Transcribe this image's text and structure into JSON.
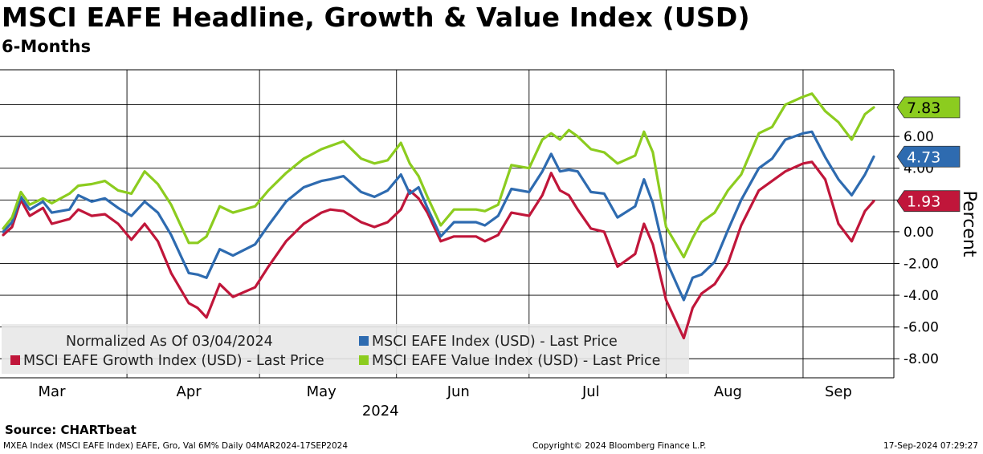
{
  "title": "MSCI EAFE Headline, Growth & Value Index (USD)",
  "subtitle": "6-Months",
  "source": "Source:  CHARTbeat",
  "footer": {
    "left": "MXEA Index (MSCI EAFE Index) EAFE, Gro, Val 6M%  Daily 04MAR2024-17SEP2024",
    "center": "Copyright© 2024 Bloomberg Finance L.P.",
    "right": "17-Sep-2024 07:29:27"
  },
  "colors": {
    "headline": "#2e6bb0",
    "growth": "#c0163a",
    "value": "#8ccc1f",
    "grid": "#000000"
  },
  "chart_data": {
    "type": "line",
    "ylabel": "Percent",
    "ylim": [
      -9.2,
      10.2
    ],
    "yticks": [
      -8,
      -6,
      -4,
      -2,
      0,
      2,
      4,
      6,
      8
    ],
    "ytick_labels": [
      "-8.00",
      "-6.00",
      "-4.00",
      "-2.00",
      "0.00",
      "2.00",
      "4.00",
      "6.00",
      "8.00"
    ],
    "xlim": [
      "2024-03-04",
      "2024-09-17"
    ],
    "month_labels": [
      "Mar",
      "Apr",
      "May",
      "Jun",
      "Jul",
      "Aug",
      "Sep"
    ],
    "month_label_dates": [
      "2024-03-15",
      "2024-04-15",
      "2024-05-15",
      "2024-06-15",
      "2024-07-15",
      "2024-08-15",
      "2024-09-09"
    ],
    "month_starts": [
      "2024-03-01",
      "2024-04-01",
      "2024-05-01",
      "2024-06-01",
      "2024-07-01",
      "2024-08-01",
      "2024-09-01"
    ],
    "year_label": "2024",
    "year_label_date": "2024-06-01",
    "legend": {
      "normalized": "Normalized As Of 03/04/2024",
      "entries": [
        {
          "series": 0,
          "label": "MSCI EAFE Index (USD) - Last Price"
        },
        {
          "series": 1,
          "label": "MSCI EAFE Growth Index (USD) - Last Price"
        },
        {
          "series": 2,
          "label": "MSCI EAFE Value Index (USD) - Last Price"
        }
      ]
    },
    "series": [
      {
        "name": "MSCI EAFE Index (USD) - Last Price",
        "color": "#2e6bb0",
        "last_value_label": "4.73",
        "points": [
          [
            "2024-03-04",
            0.0
          ],
          [
            "2024-03-06",
            0.6
          ],
          [
            "2024-03-08",
            2.2
          ],
          [
            "2024-03-10",
            1.4
          ],
          [
            "2024-03-13",
            1.9
          ],
          [
            "2024-03-15",
            1.2
          ],
          [
            "2024-03-19",
            1.4
          ],
          [
            "2024-03-21",
            2.3
          ],
          [
            "2024-03-24",
            1.9
          ],
          [
            "2024-03-27",
            2.1
          ],
          [
            "2024-03-30",
            1.5
          ],
          [
            "2024-04-02",
            1.0
          ],
          [
            "2024-04-05",
            1.9
          ],
          [
            "2024-04-08",
            1.2
          ],
          [
            "2024-04-11",
            -0.2
          ],
          [
            "2024-04-15",
            -2.6
          ],
          [
            "2024-04-17",
            -2.7
          ],
          [
            "2024-04-19",
            -2.9
          ],
          [
            "2024-04-22",
            -1.1
          ],
          [
            "2024-04-25",
            -1.5
          ],
          [
            "2024-04-30",
            -0.8
          ],
          [
            "2024-05-03",
            0.4
          ],
          [
            "2024-05-07",
            1.9
          ],
          [
            "2024-05-11",
            2.8
          ],
          [
            "2024-05-15",
            3.2
          ],
          [
            "2024-05-17",
            3.3
          ],
          [
            "2024-05-20",
            3.5
          ],
          [
            "2024-05-24",
            2.5
          ],
          [
            "2024-05-27",
            2.2
          ],
          [
            "2024-05-30",
            2.6
          ],
          [
            "2024-06-02",
            3.6
          ],
          [
            "2024-06-04",
            2.4
          ],
          [
            "2024-06-06",
            2.8
          ],
          [
            "2024-06-08",
            1.5
          ],
          [
            "2024-06-11",
            -0.3
          ],
          [
            "2024-06-14",
            0.6
          ],
          [
            "2024-06-19",
            0.6
          ],
          [
            "2024-06-21",
            0.4
          ],
          [
            "2024-06-24",
            1.0
          ],
          [
            "2024-06-27",
            2.7
          ],
          [
            "2024-07-01",
            2.5
          ],
          [
            "2024-07-04",
            3.8
          ],
          [
            "2024-07-06",
            4.9
          ],
          [
            "2024-07-08",
            3.8
          ],
          [
            "2024-07-10",
            3.9
          ],
          [
            "2024-07-12",
            3.8
          ],
          [
            "2024-07-15",
            2.5
          ],
          [
            "2024-07-18",
            2.4
          ],
          [
            "2024-07-21",
            0.9
          ],
          [
            "2024-07-25",
            1.6
          ],
          [
            "2024-07-27",
            3.3
          ],
          [
            "2024-07-29",
            1.8
          ],
          [
            "2024-08-01",
            -1.8
          ],
          [
            "2024-08-05",
            -4.3
          ],
          [
            "2024-08-07",
            -2.9
          ],
          [
            "2024-08-09",
            -2.7
          ],
          [
            "2024-08-12",
            -1.9
          ],
          [
            "2024-08-15",
            0.1
          ],
          [
            "2024-08-18",
            2.0
          ],
          [
            "2024-08-22",
            4.0
          ],
          [
            "2024-08-25",
            4.6
          ],
          [
            "2024-08-28",
            5.8
          ],
          [
            "2024-09-01",
            6.2
          ],
          [
            "2024-09-03",
            6.3
          ],
          [
            "2024-09-06",
            4.7
          ],
          [
            "2024-09-09",
            3.3
          ],
          [
            "2024-09-12",
            2.3
          ],
          [
            "2024-09-15",
            3.6
          ],
          [
            "2024-09-17",
            4.73
          ]
        ]
      },
      {
        "name": "MSCI EAFE Growth Index (USD) - Last Price",
        "color": "#c0163a",
        "last_value_label": "1.93",
        "points": [
          [
            "2024-03-04",
            -0.2
          ],
          [
            "2024-03-06",
            0.3
          ],
          [
            "2024-03-08",
            2.0
          ],
          [
            "2024-03-10",
            1.0
          ],
          [
            "2024-03-13",
            1.5
          ],
          [
            "2024-03-15",
            0.5
          ],
          [
            "2024-03-19",
            0.8
          ],
          [
            "2024-03-21",
            1.4
          ],
          [
            "2024-03-24",
            1.0
          ],
          [
            "2024-03-27",
            1.1
          ],
          [
            "2024-03-30",
            0.5
          ],
          [
            "2024-04-02",
            -0.5
          ],
          [
            "2024-04-05",
            0.5
          ],
          [
            "2024-04-08",
            -0.6
          ],
          [
            "2024-04-11",
            -2.6
          ],
          [
            "2024-04-15",
            -4.5
          ],
          [
            "2024-04-17",
            -4.8
          ],
          [
            "2024-04-19",
            -5.4
          ],
          [
            "2024-04-22",
            -3.3
          ],
          [
            "2024-04-25",
            -4.1
          ],
          [
            "2024-04-30",
            -3.5
          ],
          [
            "2024-05-03",
            -2.2
          ],
          [
            "2024-05-07",
            -0.6
          ],
          [
            "2024-05-11",
            0.5
          ],
          [
            "2024-05-15",
            1.2
          ],
          [
            "2024-05-17",
            1.4
          ],
          [
            "2024-05-20",
            1.3
          ],
          [
            "2024-05-24",
            0.6
          ],
          [
            "2024-05-27",
            0.3
          ],
          [
            "2024-05-30",
            0.6
          ],
          [
            "2024-06-02",
            1.4
          ],
          [
            "2024-06-04",
            2.6
          ],
          [
            "2024-06-06",
            2.1
          ],
          [
            "2024-06-08",
            1.2
          ],
          [
            "2024-06-11",
            -0.6
          ],
          [
            "2024-06-14",
            -0.3
          ],
          [
            "2024-06-19",
            -0.3
          ],
          [
            "2024-06-21",
            -0.6
          ],
          [
            "2024-06-24",
            -0.2
          ],
          [
            "2024-06-27",
            1.2
          ],
          [
            "2024-07-01",
            1.0
          ],
          [
            "2024-07-04",
            2.3
          ],
          [
            "2024-07-06",
            3.7
          ],
          [
            "2024-07-08",
            2.6
          ],
          [
            "2024-07-10",
            2.3
          ],
          [
            "2024-07-12",
            1.4
          ],
          [
            "2024-07-15",
            0.2
          ],
          [
            "2024-07-18",
            0.0
          ],
          [
            "2024-07-21",
            -2.2
          ],
          [
            "2024-07-25",
            -1.4
          ],
          [
            "2024-07-27",
            0.5
          ],
          [
            "2024-07-29",
            -0.8
          ],
          [
            "2024-08-01",
            -4.3
          ],
          [
            "2024-08-05",
            -6.7
          ],
          [
            "2024-08-07",
            -4.8
          ],
          [
            "2024-08-09",
            -3.9
          ],
          [
            "2024-08-12",
            -3.3
          ],
          [
            "2024-08-15",
            -2.0
          ],
          [
            "2024-08-18",
            0.4
          ],
          [
            "2024-08-22",
            2.6
          ],
          [
            "2024-08-25",
            3.2
          ],
          [
            "2024-08-28",
            3.8
          ],
          [
            "2024-09-01",
            4.3
          ],
          [
            "2024-09-03",
            4.4
          ],
          [
            "2024-09-06",
            3.3
          ],
          [
            "2024-09-09",
            0.5
          ],
          [
            "2024-09-12",
            -0.6
          ],
          [
            "2024-09-15",
            1.3
          ],
          [
            "2024-09-17",
            1.93
          ]
        ]
      },
      {
        "name": "MSCI EAFE Value Index (USD) - Last Price",
        "color": "#8ccc1f",
        "last_value_label": "7.83",
        "points": [
          [
            "2024-03-04",
            0.2
          ],
          [
            "2024-03-06",
            0.9
          ],
          [
            "2024-03-08",
            2.5
          ],
          [
            "2024-03-10",
            1.7
          ],
          [
            "2024-03-13",
            2.1
          ],
          [
            "2024-03-15",
            1.8
          ],
          [
            "2024-03-19",
            2.4
          ],
          [
            "2024-03-21",
            2.9
          ],
          [
            "2024-03-24",
            3.0
          ],
          [
            "2024-03-27",
            3.2
          ],
          [
            "2024-03-30",
            2.6
          ],
          [
            "2024-04-02",
            2.4
          ],
          [
            "2024-04-05",
            3.8
          ],
          [
            "2024-04-08",
            3.0
          ],
          [
            "2024-04-11",
            1.7
          ],
          [
            "2024-04-15",
            -0.7
          ],
          [
            "2024-04-17",
            -0.7
          ],
          [
            "2024-04-19",
            -0.3
          ],
          [
            "2024-04-22",
            1.6
          ],
          [
            "2024-04-25",
            1.2
          ],
          [
            "2024-04-30",
            1.6
          ],
          [
            "2024-05-03",
            2.6
          ],
          [
            "2024-05-07",
            3.7
          ],
          [
            "2024-05-11",
            4.6
          ],
          [
            "2024-05-15",
            5.2
          ],
          [
            "2024-05-17",
            5.4
          ],
          [
            "2024-05-20",
            5.7
          ],
          [
            "2024-05-24",
            4.6
          ],
          [
            "2024-05-27",
            4.3
          ],
          [
            "2024-05-30",
            4.5
          ],
          [
            "2024-06-02",
            5.6
          ],
          [
            "2024-06-04",
            4.3
          ],
          [
            "2024-06-06",
            3.5
          ],
          [
            "2024-06-08",
            2.2
          ],
          [
            "2024-06-11",
            0.4
          ],
          [
            "2024-06-14",
            1.4
          ],
          [
            "2024-06-19",
            1.4
          ],
          [
            "2024-06-21",
            1.3
          ],
          [
            "2024-06-24",
            1.7
          ],
          [
            "2024-06-27",
            4.2
          ],
          [
            "2024-07-01",
            4.0
          ],
          [
            "2024-07-04",
            5.8
          ],
          [
            "2024-07-06",
            6.2
          ],
          [
            "2024-07-08",
            5.8
          ],
          [
            "2024-07-10",
            6.4
          ],
          [
            "2024-07-12",
            6.0
          ],
          [
            "2024-07-15",
            5.2
          ],
          [
            "2024-07-18",
            5.0
          ],
          [
            "2024-07-21",
            4.3
          ],
          [
            "2024-07-25",
            4.8
          ],
          [
            "2024-07-27",
            6.3
          ],
          [
            "2024-07-29",
            5.0
          ],
          [
            "2024-08-01",
            0.3
          ],
          [
            "2024-08-05",
            -1.6
          ],
          [
            "2024-08-07",
            -0.4
          ],
          [
            "2024-08-09",
            0.6
          ],
          [
            "2024-08-12",
            1.2
          ],
          [
            "2024-08-15",
            2.6
          ],
          [
            "2024-08-18",
            3.6
          ],
          [
            "2024-08-22",
            6.2
          ],
          [
            "2024-08-25",
            6.6
          ],
          [
            "2024-08-28",
            8.0
          ],
          [
            "2024-09-01",
            8.5
          ],
          [
            "2024-09-03",
            8.7
          ],
          [
            "2024-09-06",
            7.6
          ],
          [
            "2024-09-09",
            6.9
          ],
          [
            "2024-09-12",
            5.8
          ],
          [
            "2024-09-15",
            7.4
          ],
          [
            "2024-09-17",
            7.83
          ]
        ]
      }
    ]
  }
}
